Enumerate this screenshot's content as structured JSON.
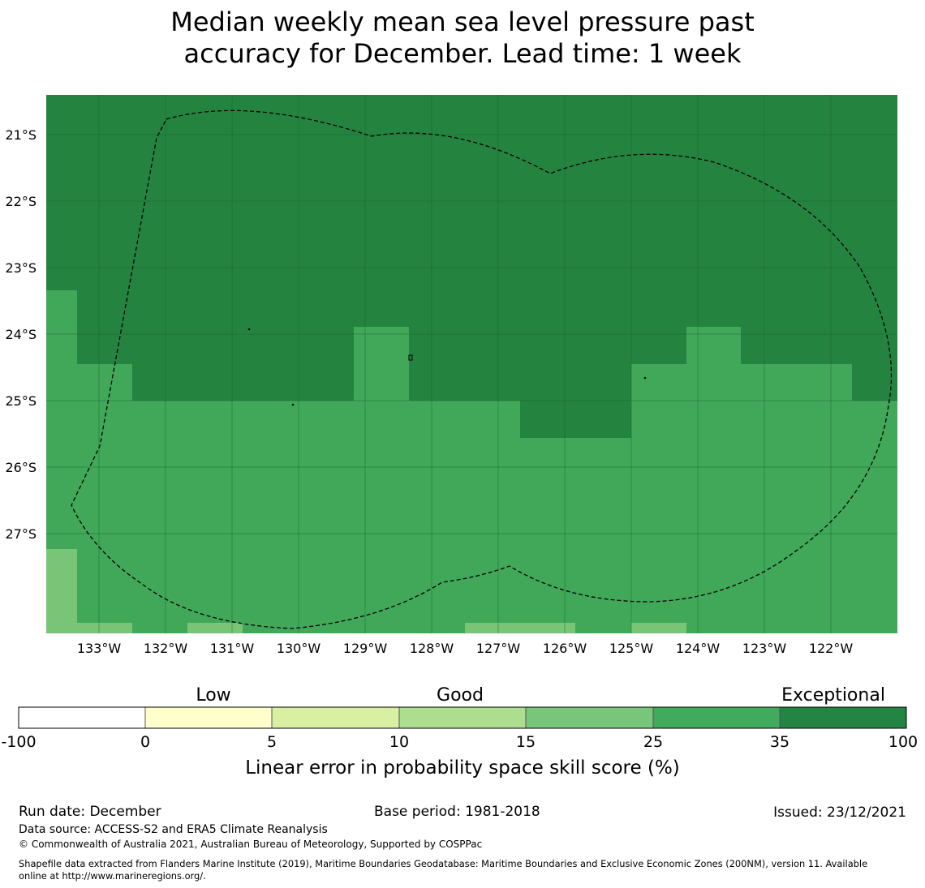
{
  "title": {
    "line1": "Median weekly mean sea level pressure past",
    "line2": "accuracy for December. Lead time: 1 week"
  },
  "map": {
    "lat_labels": [
      "21°S",
      "22°S",
      "23°S",
      "24°S",
      "25°S",
      "26°S",
      "27°S"
    ],
    "lon_labels": [
      "133°W",
      "132°W",
      "131°W",
      "130°W",
      "129°W",
      "128°W",
      "127°W",
      "126°W",
      "125°W",
      "124°W",
      "123°W",
      "122°W"
    ],
    "colors": {
      "exceptional": "#24843f",
      "very_good": "#41a85a",
      "good": "#78c578"
    }
  },
  "colorbar": {
    "categories": [
      "Low",
      "Good",
      "Exceptional"
    ],
    "ticks": [
      "-100",
      "0",
      "5",
      "10",
      "15",
      "25",
      "35",
      "100"
    ],
    "colors": [
      "#ffffff",
      "#ffffcc",
      "#d9f0a3",
      "#addd8e",
      "#78c679",
      "#41ab5d",
      "#238443"
    ],
    "label": "Linear error in probability space skill score (%)"
  },
  "footer": {
    "run_date": "Run date: December",
    "base_period": "Base period: 1981-2018",
    "issued": "Issued: 23/12/2021",
    "data_source": "Data source: ACCESS-S2 and ERA5 Climate Reanalysis",
    "copyright": "© Commonwealth of Australia 2021, Australian Bureau of Meteorology, Supported by COSPPac",
    "shapefile_line1": "Shapefile data extracted from Flanders Marine Institute (2019), Maritime Boundaries Geodatabase: Maritime Boundaries and Exclusive Economic Zones (200NM), version 11. Available",
    "shapefile_line2": "online at http://www.marineregions.org/."
  }
}
